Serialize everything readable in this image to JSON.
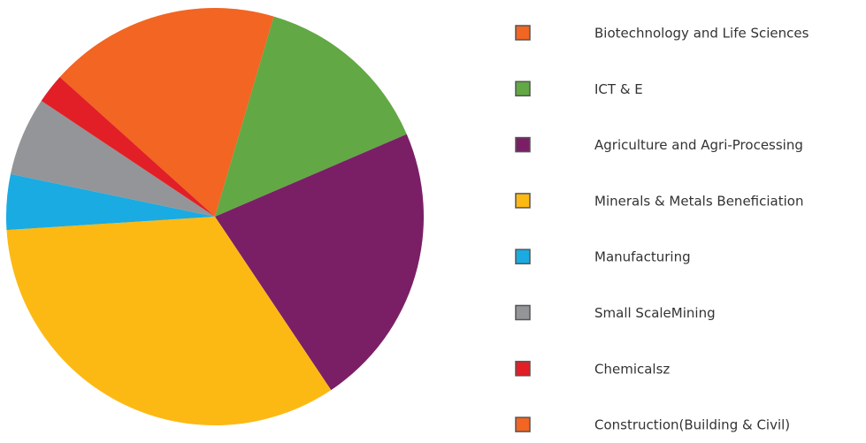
{
  "chart_data": {
    "type": "pie",
    "categories": [
      "Biotechnology and Life Sciences",
      "ICT & E",
      "Agriculture and Agri-Processing",
      "Minerals & Metals Beneficiation",
      "Manufacturing",
      "Small ScaleMining",
      "Chemicalsz",
      "Construction(Building & Civil)"
    ],
    "values": [
      17.9,
      14.0,
      22.1,
      33.4,
      4.3,
      6.1,
      2.3,
      0
    ],
    "colors": [
      "#f26522",
      "#62a844",
      "#7a1f66",
      "#fdb913",
      "#1aabe2",
      "#939598",
      "#e21f26",
      "#f26522"
    ],
    "legend": "right"
  }
}
